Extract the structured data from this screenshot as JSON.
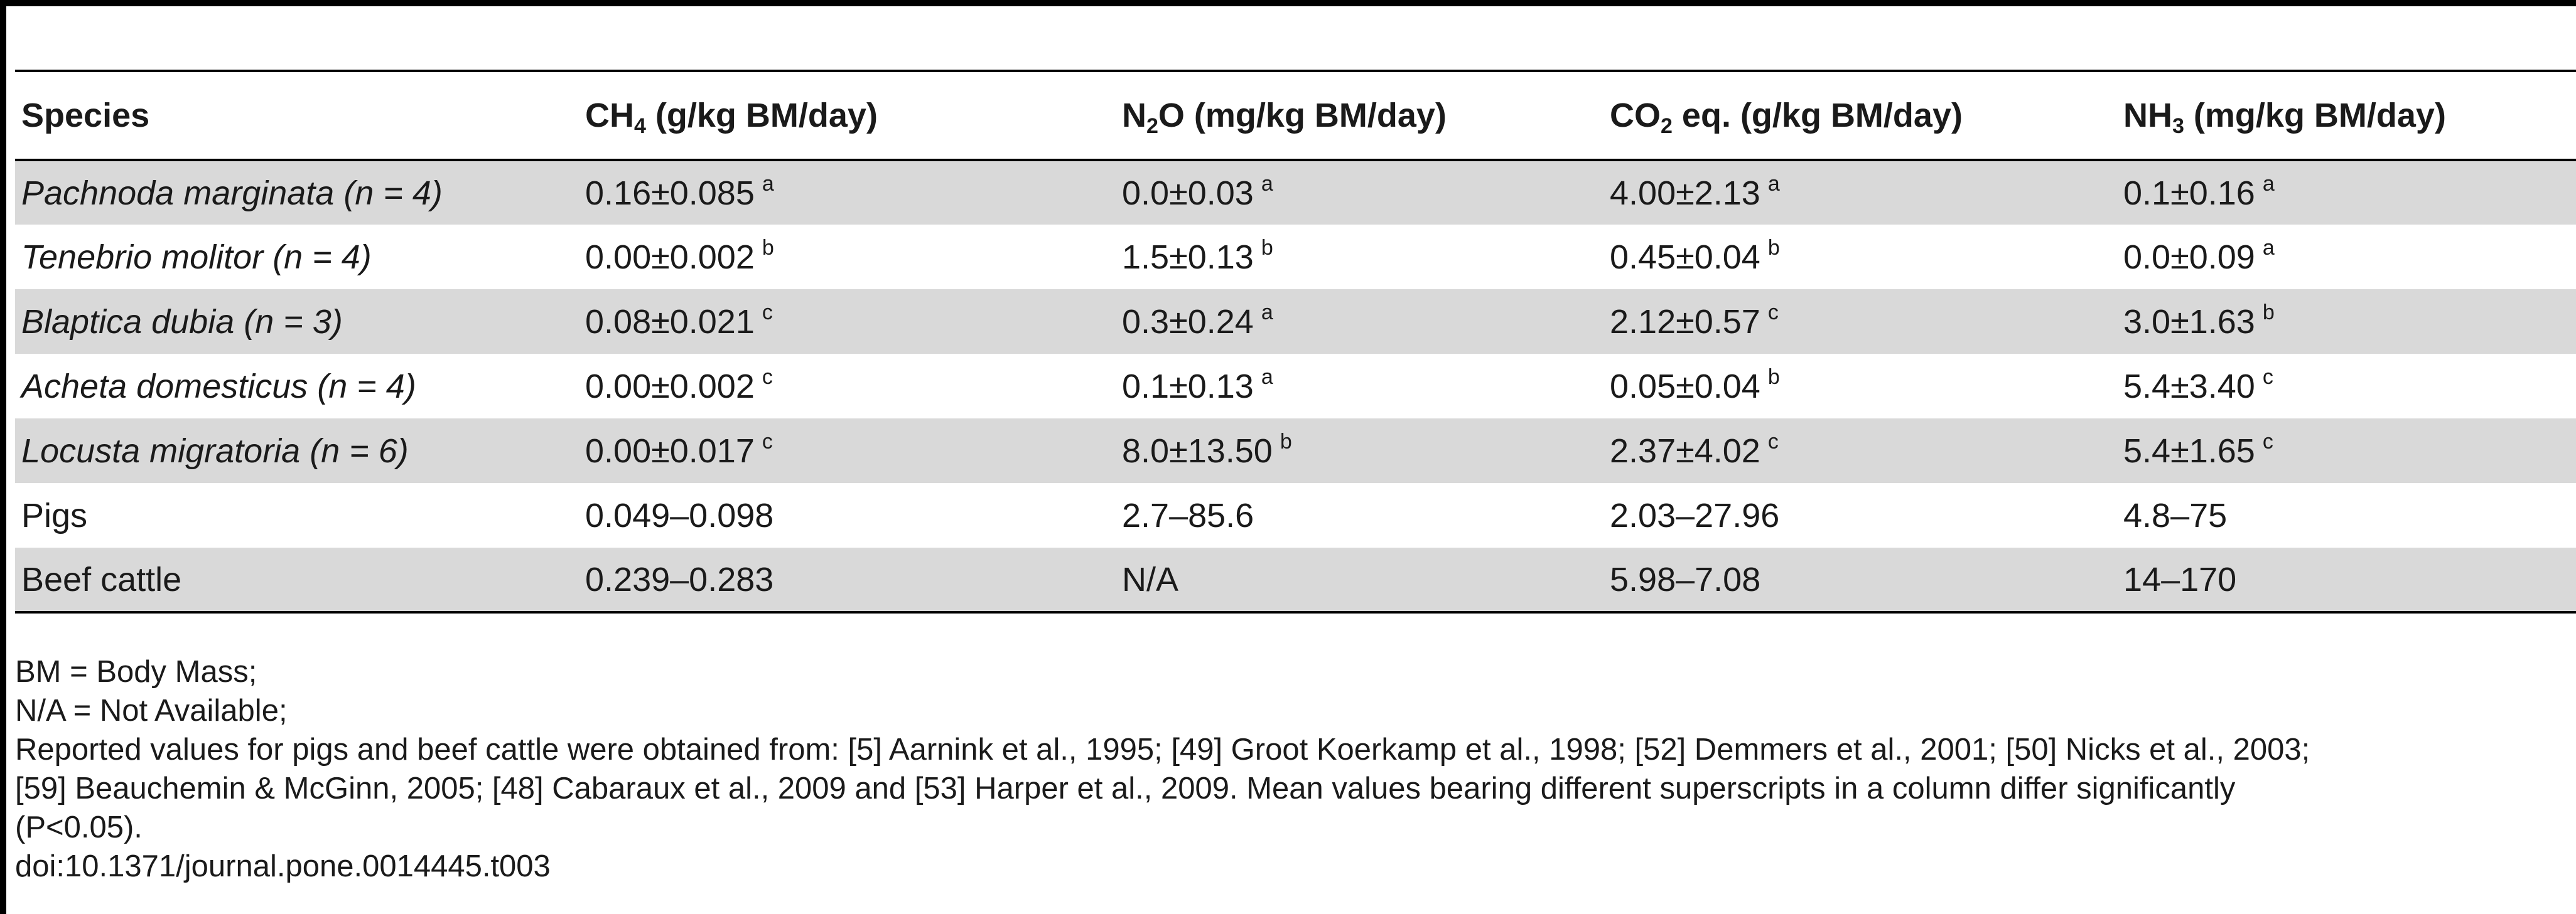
{
  "table": {
    "headers": [
      {
        "main": "Species",
        "sub": "",
        "unit": ""
      },
      {
        "main": "CH",
        "sub": "4",
        "unit": " (g/kg BM/day)"
      },
      {
        "main": "N",
        "sub": "2",
        "unit": "O (mg/kg BM/day)"
      },
      {
        "main": "CO",
        "sub": "2",
        "unit": " eq. (g/kg BM/day)"
      },
      {
        "main": "NH",
        "sub": "3",
        "unit": " (mg/kg BM/day)"
      }
    ],
    "rows": [
      {
        "species": "Pachnoda marginata (n = 4)",
        "italic": true,
        "cells": [
          {
            "value": "0.16±0.085",
            "sup": "a"
          },
          {
            "value": "0.0±0.03",
            "sup": "a"
          },
          {
            "value": "4.00±2.13",
            "sup": "a"
          },
          {
            "value": "0.1±0.16",
            "sup": "a"
          }
        ]
      },
      {
        "species": "Tenebrio molitor (n = 4)",
        "italic": true,
        "cells": [
          {
            "value": "0.00±0.002",
            "sup": "b"
          },
          {
            "value": "1.5±0.13",
            "sup": "b"
          },
          {
            "value": "0.45±0.04",
            "sup": "b"
          },
          {
            "value": "0.0±0.09",
            "sup": "a"
          }
        ]
      },
      {
        "species": "Blaptica dubia (n = 3)",
        "italic": true,
        "cells": [
          {
            "value": "0.08±0.021",
            "sup": "c"
          },
          {
            "value": "0.3±0.24",
            "sup": "a"
          },
          {
            "value": "2.12±0.57",
            "sup": "c"
          },
          {
            "value": "3.0±1.63",
            "sup": "b"
          }
        ]
      },
      {
        "species": "Acheta domesticus (n = 4)",
        "italic": true,
        "cells": [
          {
            "value": "0.00±0.002",
            "sup": "c"
          },
          {
            "value": "0.1±0.13",
            "sup": "a"
          },
          {
            "value": "0.05±0.04",
            "sup": "b"
          },
          {
            "value": "5.4±3.40",
            "sup": "c"
          }
        ]
      },
      {
        "species": "Locusta migratoria (n = 6)",
        "italic": true,
        "cells": [
          {
            "value": "0.00±0.017",
            "sup": "c"
          },
          {
            "value": "8.0±13.50",
            "sup": "b"
          },
          {
            "value": "2.37±4.02",
            "sup": "c"
          },
          {
            "value": "5.4±1.65",
            "sup": "c"
          }
        ]
      },
      {
        "species": "Pigs",
        "italic": false,
        "cells": [
          {
            "value": "0.049–0.098",
            "sup": ""
          },
          {
            "value": "2.7–85.6",
            "sup": ""
          },
          {
            "value": "2.03–27.96",
            "sup": ""
          },
          {
            "value": "4.8–75",
            "sup": ""
          }
        ]
      },
      {
        "species": "Beef cattle",
        "italic": false,
        "cells": [
          {
            "value": "0.239–0.283",
            "sup": ""
          },
          {
            "value": "N/A",
            "sup": ""
          },
          {
            "value": "5.98–7.08",
            "sup": ""
          },
          {
            "value": "14–170",
            "sup": ""
          }
        ]
      }
    ]
  },
  "notes": {
    "bm": "BM = Body Mass;",
    "na": "N/A = Not Available;",
    "reported_line1": "Reported values for pigs and beef cattle were obtained from: [5] Aarnink et al., 1995; [49] Groot Koerkamp et al., 1998; [52] Demmers et al., 2001; [50] Nicks et al., 2003;",
    "reported_line2": "[59] Beauchemin & McGinn, 2005; [48] Cabaraux et al., 2009 and [53] Harper et al., 2009. Mean values bearing different superscripts in a column differ significantly",
    "reported_line3": "(P<0.05).",
    "doi": "doi:10.1371/journal.pone.0014445.t003"
  },
  "colors": {
    "shaded_row": "#d9d9d9",
    "rule": "#000000",
    "text": "#1a1a1a"
  }
}
